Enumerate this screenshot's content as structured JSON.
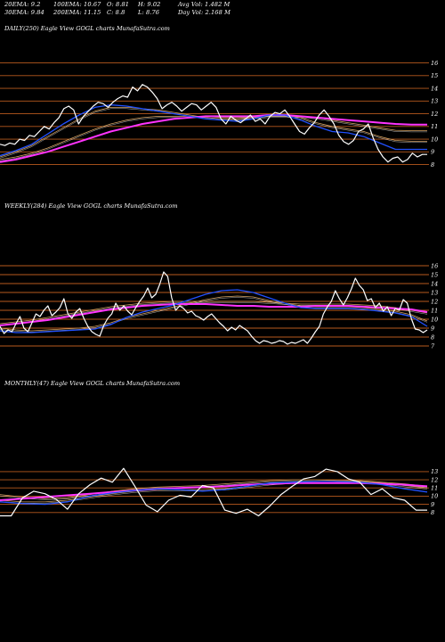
{
  "stats": {
    "ema20": "20EMA: 9.2",
    "ema30": "30EMA: 9.84",
    "ema100": "100EMA: 10.67",
    "ema200": "200EMA: 11.15",
    "open": "O: 8.81",
    "close": "C: 8.8",
    "high": "H: 9.02",
    "low": "L: 8.76",
    "avg_vol": "Avg Vol: 1.482  M",
    "day_vol": "Day Vol: 2.168 M"
  },
  "colors": {
    "background": "#000000",
    "price": "#ffffff",
    "ema_fast": "#2050ff",
    "ema_slow": "#ff33ff",
    "ema_mid": "#d2a060",
    "level_line": "#b85a1e"
  },
  "chart_data": [
    {
      "type": "line",
      "title": "DAILY(250) Eagle  View  GOGL charts MunafaSutra.com",
      "ylim": [
        7.2,
        16.6
      ],
      "yticks": [
        "16",
        "15",
        "14",
        "13",
        "12",
        "11",
        "10",
        "9",
        "8"
      ],
      "series": [
        {
          "role": "price",
          "values": [
            9.6,
            9.5,
            9.7,
            9.6,
            10.0,
            9.9,
            10.3,
            10.2,
            10.6,
            11.0,
            10.8,
            11.3,
            11.7,
            12.4,
            12.6,
            12.3,
            11.2,
            11.8,
            12.2,
            12.6,
            12.9,
            12.8,
            12.5,
            12.9,
            13.2,
            13.4,
            13.3,
            14.1,
            13.8,
            14.3,
            14.1,
            13.7,
            13.2,
            12.4,
            12.7,
            12.9,
            12.6,
            12.2,
            12.5,
            12.8,
            12.7,
            12.3,
            12.6,
            12.9,
            12.5,
            11.6,
            11.2,
            11.8,
            11.5,
            11.3,
            11.6,
            11.9,
            11.4,
            11.6,
            11.2,
            11.8,
            12.1,
            12.0,
            12.3,
            11.8,
            11.2,
            10.6,
            10.4,
            10.9,
            11.3,
            11.9,
            12.3,
            11.8,
            11.2,
            10.3,
            9.8,
            9.6,
            9.9,
            10.6,
            10.8,
            11.2,
            10.1,
            9.2,
            8.6,
            8.2,
            8.5,
            8.6,
            8.2,
            8.4,
            8.9,
            8.6,
            8.8,
            8.8
          ]
        },
        {
          "role": "ema20",
          "values": [
            8.7,
            9.1,
            9.6,
            10.4,
            11.2,
            11.9,
            12.5,
            12.7,
            12.6,
            12.4,
            12.2,
            12.0,
            11.8,
            11.6,
            11.5,
            11.4,
            11.6,
            11.9,
            11.9,
            11.5,
            11.0,
            10.6,
            10.5,
            10.2,
            9.7,
            9.2,
            9.2,
            9.2
          ]
        },
        {
          "role": "ema30",
          "values": [
            8.6,
            9.0,
            9.5,
            10.2,
            10.9,
            11.6,
            12.2,
            12.5,
            12.5,
            12.4,
            12.3,
            12.1,
            11.9,
            11.7,
            11.6,
            11.6,
            11.7,
            11.9,
            11.9,
            11.7,
            11.3,
            11.0,
            10.8,
            10.6,
            10.2,
            9.9,
            9.84,
            9.84
          ]
        },
        {
          "role": "ema100",
          "values": [
            8.4,
            8.6,
            8.9,
            9.3,
            9.8,
            10.3,
            10.8,
            11.2,
            11.5,
            11.7,
            11.8,
            11.8,
            11.8,
            11.8,
            11.7,
            11.7,
            11.7,
            11.8,
            11.8,
            11.8,
            11.7,
            11.5,
            11.3,
            11.1,
            10.9,
            10.7,
            10.67,
            10.67
          ]
        },
        {
          "role": "ema200",
          "values": [
            8.2,
            8.4,
            8.7,
            9.0,
            9.4,
            9.8,
            10.2,
            10.6,
            10.9,
            11.2,
            11.4,
            11.6,
            11.7,
            11.8,
            11.8,
            11.8,
            11.8,
            11.9,
            11.9,
            11.8,
            11.7,
            11.6,
            11.5,
            11.4,
            11.3,
            11.2,
            11.15,
            11.15
          ]
        }
      ]
    },
    {
      "type": "line",
      "title": "WEEKLY(284) Eagle  View  GOGL charts MunafaSutra.com",
      "ylim": [
        6.6,
        16.6
      ],
      "yticks": [
        "16",
        "15",
        "14",
        "13",
        "12",
        "11",
        "10",
        "9",
        "8",
        "7"
      ],
      "series": [
        {
          "role": "price",
          "values": [
            9.2,
            8.4,
            8.8,
            8.6,
            9.5,
            10.3,
            9.0,
            8.6,
            9.6,
            10.6,
            10.3,
            11.0,
            11.5,
            10.4,
            10.8,
            11.3,
            12.3,
            10.6,
            10.1,
            10.8,
            11.2,
            10.1,
            9.2,
            8.6,
            8.3,
            8.1,
            9.3,
            10.1,
            10.6,
            11.8,
            11.0,
            11.5,
            10.9,
            10.5,
            11.3,
            12.0,
            12.6,
            13.5,
            12.4,
            12.8,
            13.9,
            15.3,
            14.8,
            12.4,
            11.0,
            11.5,
            11.2,
            10.7,
            10.9,
            10.4,
            10.2,
            9.9,
            10.3,
            10.6,
            10.1,
            9.6,
            9.2,
            8.7,
            9.1,
            8.8,
            9.3,
            9.0,
            8.7,
            8.1,
            7.6,
            7.3,
            7.6,
            7.5,
            7.3,
            7.4,
            7.6,
            7.5,
            7.2,
            7.4,
            7.3,
            7.5,
            7.7,
            7.3,
            7.9,
            8.6,
            9.2,
            10.6,
            11.4,
            12.0,
            13.2,
            12.3,
            11.6,
            12.4,
            13.4,
            14.6,
            13.8,
            13.3,
            12.1,
            12.3,
            11.3,
            11.8,
            10.9,
            11.4,
            10.4,
            11.2,
            11.0,
            12.2,
            11.8,
            10.1,
            8.9,
            8.8,
            8.5,
            8.8
          ]
        },
        {
          "role": "ema20",
          "values": [
            8.7,
            8.5,
            8.5,
            8.6,
            8.7,
            8.8,
            8.9,
            9.4,
            10.2,
            10.8,
            11.2,
            11.6,
            12.2,
            12.8,
            13.2,
            13.3,
            13.0,
            12.4,
            11.8,
            11.3,
            11.2,
            11.2,
            11.2,
            11.1,
            10.9,
            10.7,
            10.3,
            9.2
          ]
        },
        {
          "role": "ema30",
          "values": [
            9.0,
            8.8,
            8.7,
            8.8,
            8.9,
            9.0,
            9.2,
            9.6,
            10.2,
            10.6,
            11.0,
            11.4,
            11.8,
            12.2,
            12.5,
            12.6,
            12.5,
            12.1,
            11.8,
            11.5,
            11.4,
            11.4,
            11.4,
            11.3,
            11.1,
            10.9,
            10.5,
            9.8
          ]
        },
        {
          "role": "ema100",
          "values": [
            9.5,
            9.7,
            9.9,
            10.2,
            10.5,
            10.8,
            11.1,
            11.4,
            11.6,
            11.8,
            11.9,
            12.0,
            12.0,
            12.0,
            12.0,
            12.0,
            12.0,
            11.9,
            11.8,
            11.7,
            11.7,
            11.7,
            11.7,
            11.6,
            11.5,
            11.3,
            11.0,
            10.7
          ]
        },
        {
          "role": "ema200",
          "values": [
            9.3,
            9.5,
            9.7,
            9.9,
            10.2,
            10.5,
            10.8,
            11.1,
            11.3,
            11.5,
            11.6,
            11.7,
            11.7,
            11.7,
            11.6,
            11.5,
            11.5,
            11.4,
            11.4,
            11.4,
            11.5,
            11.5,
            11.5,
            11.4,
            11.3,
            11.2,
            11.1,
            10.8
          ]
        }
      ]
    },
    {
      "type": "line",
      "title": "MONTHLY(47) Eagle  View  GOGL charts MunafaSutra.com",
      "ylim": [
        7.0,
        14.4
      ],
      "yticks": [
        "13",
        "12",
        "11",
        "10",
        "9",
        "8"
      ],
      "series": [
        {
          "role": "price",
          "values": [
            7.6,
            7.6,
            9.8,
            10.6,
            10.3,
            9.6,
            8.4,
            10.3,
            11.4,
            12.2,
            11.7,
            13.4,
            11.2,
            8.9,
            8.1,
            9.5,
            10.1,
            9.9,
            11.3,
            11.0,
            8.3,
            7.9,
            8.4,
            7.6,
            8.8,
            10.2,
            11.2,
            12.1,
            12.4,
            13.3,
            13.0,
            12.1,
            11.7,
            10.2,
            10.9,
            9.8,
            9.5,
            8.3,
            8.3
          ]
        },
        {
          "role": "ema20",
          "values": [
            9.3,
            9.1,
            9.0,
            9.3,
            10.0,
            10.4,
            10.7,
            10.9,
            10.8,
            10.6,
            10.8,
            11.2,
            11.6,
            11.7,
            11.8,
            11.8,
            11.7,
            11.4,
            10.9,
            10.5
          ]
        },
        {
          "role": "ema30",
          "values": [
            9.5,
            9.3,
            9.3,
            9.5,
            9.9,
            10.3,
            10.6,
            10.8,
            10.8,
            10.8,
            10.9,
            11.2,
            11.5,
            11.7,
            11.8,
            11.8,
            11.8,
            11.6,
            11.3,
            11.0
          ]
        },
        {
          "role": "ema100",
          "values": [
            10.2,
            9.9,
            9.7,
            9.8,
            10.2,
            10.6,
            10.9,
            11.1,
            11.2,
            11.3,
            11.5,
            11.7,
            11.9,
            12.0,
            12.0,
            11.9,
            11.9,
            11.7,
            11.5,
            11.2
          ]
        },
        {
          "role": "ema200",
          "values": [
            9.5,
            9.7,
            9.9,
            10.1,
            10.3,
            10.5,
            10.7,
            10.9,
            11.0,
            11.1,
            11.2,
            11.4,
            11.5,
            11.6,
            11.6,
            11.6,
            11.6,
            11.5,
            11.4,
            11.2
          ]
        }
      ]
    }
  ]
}
